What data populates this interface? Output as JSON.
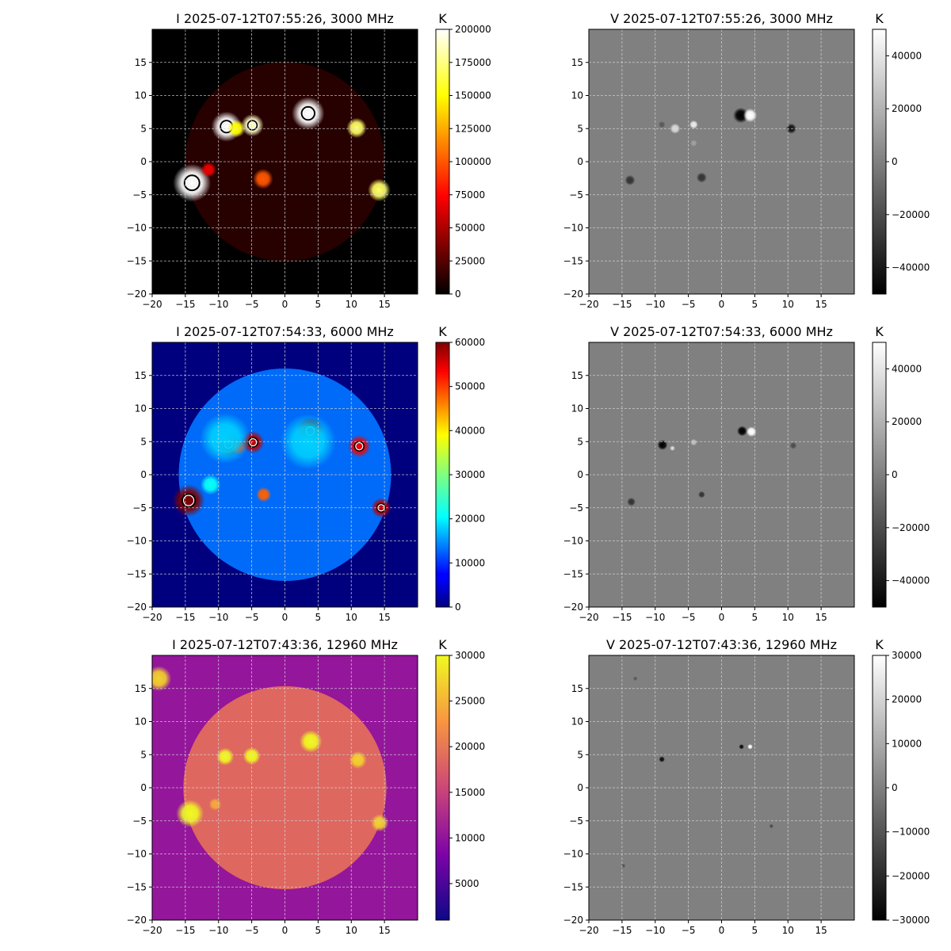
{
  "chart_data": [
    {
      "type": "heatmap",
      "title": "I 2025-07-12T07:55:26, 3000 MHz",
      "xlim": [
        -20,
        20
      ],
      "ylim": [
        -20,
        20
      ],
      "xticks": [
        -20,
        -15,
        -10,
        -5,
        0,
        5,
        10,
        15
      ],
      "yticks": [
        -20,
        -15,
        -10,
        -5,
        0,
        5,
        10,
        15
      ],
      "grid": true,
      "colormap": "hot",
      "colorbar": {
        "label": "K",
        "range": [
          0,
          200000
        ],
        "ticks": [
          0,
          25000,
          50000,
          75000,
          100000,
          125000,
          150000,
          175000,
          200000
        ]
      },
      "disk": {
        "center": [
          0,
          0
        ],
        "radius": 15,
        "brightness": 0.06
      },
      "contours": true,
      "sources": [
        {
          "x": -14.0,
          "y": -3.2,
          "r": 1.5,
          "level": 1.0,
          "polarity": 0
        },
        {
          "x": -8.8,
          "y": 5.3,
          "r": 1.2,
          "level": 1.0,
          "polarity": 0
        },
        {
          "x": -7.3,
          "y": 5.0,
          "r": 0.7,
          "level": 0.75,
          "polarity": 0
        },
        {
          "x": -4.9,
          "y": 5.5,
          "r": 0.9,
          "level": 0.95,
          "polarity": 0
        },
        {
          "x": 3.5,
          "y": 7.3,
          "r": 1.3,
          "level": 1.0,
          "polarity": 0
        },
        {
          "x": 10.8,
          "y": 5.1,
          "r": 0.8,
          "level": 0.85,
          "polarity": 0
        },
        {
          "x": 14.2,
          "y": -4.3,
          "r": 0.9,
          "level": 0.85,
          "polarity": 0
        },
        {
          "x": -3.3,
          "y": -2.6,
          "r": 0.8,
          "level": 0.5,
          "polarity": 0
        },
        {
          "x": -11.5,
          "y": -1.2,
          "r": 0.6,
          "level": 0.35,
          "polarity": 0
        }
      ]
    },
    {
      "type": "heatmap",
      "title": "V 2025-07-12T07:55:26, 3000 MHz",
      "xlim": [
        -20,
        20
      ],
      "ylim": [
        -20,
        20
      ],
      "xticks": [
        -20,
        -15,
        -10,
        -5,
        0,
        5,
        10,
        15
      ],
      "yticks": [
        -20,
        -15,
        -10,
        -5,
        0,
        5,
        10,
        15
      ],
      "grid": true,
      "colormap": "gray",
      "colorbar": {
        "label": "K",
        "range": [
          -50000,
          50000
        ],
        "ticks": [
          -40000,
          -20000,
          0,
          20000,
          40000
        ]
      },
      "sources": [
        {
          "x": 2.9,
          "y": 7.0,
          "r": 0.9,
          "level": 1.0,
          "polarity": -1
        },
        {
          "x": 4.3,
          "y": 7.0,
          "r": 0.8,
          "level": 1.0,
          "polarity": 1
        },
        {
          "x": -7.0,
          "y": 5.0,
          "r": 0.6,
          "level": 0.7,
          "polarity": 1
        },
        {
          "x": -4.2,
          "y": 5.6,
          "r": 0.5,
          "level": 0.85,
          "polarity": 1
        },
        {
          "x": -9.0,
          "y": 5.6,
          "r": 0.4,
          "level": 0.3,
          "polarity": -1
        },
        {
          "x": 10.5,
          "y": 5.0,
          "r": 0.6,
          "level": 0.85,
          "polarity": -1
        },
        {
          "x": -13.8,
          "y": -2.8,
          "r": 0.6,
          "level": 0.6,
          "polarity": -1
        },
        {
          "x": -3.0,
          "y": -2.4,
          "r": 0.6,
          "level": 0.6,
          "polarity": -1
        },
        {
          "x": -4.2,
          "y": 2.8,
          "r": 0.4,
          "level": 0.25,
          "polarity": 1
        }
      ]
    },
    {
      "type": "heatmap",
      "title": "I 2025-07-12T07:54:33, 6000 MHz",
      "xlim": [
        -20,
        20
      ],
      "ylim": [
        -20,
        20
      ],
      "xticks": [
        -20,
        -15,
        -10,
        -5,
        0,
        5,
        10,
        15
      ],
      "yticks": [
        -20,
        -15,
        -10,
        -5,
        0,
        5,
        10,
        15
      ],
      "grid": true,
      "colormap": "jet",
      "colorbar": {
        "label": "K",
        "range": [
          0,
          60000
        ],
        "ticks": [
          0,
          10000,
          20000,
          30000,
          40000,
          50000,
          60000
        ]
      },
      "disk": {
        "center": [
          0,
          0
        ],
        "radius": 16,
        "brightness": 0.22
      },
      "contours": true,
      "sources": [
        {
          "x": -14.5,
          "y": -3.9,
          "r": 1.3,
          "level": 1.0,
          "polarity": 0
        },
        {
          "x": -8.5,
          "y": 4.6,
          "r": 1.0,
          "level": 1.0,
          "polarity": 0
        },
        {
          "x": -7.0,
          "y": 4.2,
          "r": 0.6,
          "level": 0.85,
          "polarity": 0
        },
        {
          "x": -4.8,
          "y": 4.9,
          "r": 0.9,
          "level": 0.95,
          "polarity": 0
        },
        {
          "x": 3.8,
          "y": 6.6,
          "r": 1.1,
          "level": 1.0,
          "polarity": 0
        },
        {
          "x": 11.2,
          "y": 4.3,
          "r": 0.9,
          "level": 0.9,
          "polarity": 0
        },
        {
          "x": 14.5,
          "y": -5.0,
          "r": 0.8,
          "level": 0.95,
          "polarity": 0
        },
        {
          "x": -3.2,
          "y": -3.0,
          "r": 0.6,
          "level": 0.8,
          "polarity": 0
        },
        {
          "x": -11.2,
          "y": -1.5,
          "r": 0.8,
          "level": 0.35,
          "polarity": 0
        },
        {
          "x": -9.0,
          "y": 5.5,
          "r": 2.0,
          "level": 0.3,
          "polarity": 0
        },
        {
          "x": 3.5,
          "y": 5.0,
          "r": 2.2,
          "level": 0.3,
          "polarity": 0
        }
      ]
    },
    {
      "type": "heatmap",
      "title": "V 2025-07-12T07:54:33, 6000 MHz",
      "xlim": [
        -20,
        20
      ],
      "ylim": [
        -20,
        20
      ],
      "xticks": [
        -20,
        -15,
        -10,
        -5,
        0,
        5,
        10,
        15
      ],
      "yticks": [
        -20,
        -15,
        -10,
        -5,
        0,
        5,
        10,
        15
      ],
      "grid": true,
      "colormap": "gray",
      "colorbar": {
        "label": "K",
        "range": [
          -50000,
          50000
        ],
        "ticks": [
          -40000,
          -20000,
          0,
          20000,
          40000
        ]
      },
      "sources": [
        {
          "x": 3.1,
          "y": 6.6,
          "r": 0.6,
          "level": 1.0,
          "polarity": -1
        },
        {
          "x": 4.5,
          "y": 6.5,
          "r": 0.6,
          "level": 1.0,
          "polarity": 1
        },
        {
          "x": -8.9,
          "y": 4.5,
          "r": 0.6,
          "level": 1.0,
          "polarity": -1
        },
        {
          "x": -7.4,
          "y": 4.0,
          "r": 0.3,
          "level": 0.7,
          "polarity": 1
        },
        {
          "x": -4.2,
          "y": 4.9,
          "r": 0.4,
          "level": 0.5,
          "polarity": 1
        },
        {
          "x": 10.8,
          "y": 4.4,
          "r": 0.4,
          "level": 0.4,
          "polarity": -1
        },
        {
          "x": -13.6,
          "y": -4.1,
          "r": 0.5,
          "level": 0.6,
          "polarity": -1
        },
        {
          "x": -3.0,
          "y": -3.0,
          "r": 0.4,
          "level": 0.6,
          "polarity": -1
        }
      ]
    },
    {
      "type": "heatmap",
      "title": "I 2025-07-12T07:43:36, 12960 MHz",
      "xlim": [
        -20,
        20
      ],
      "ylim": [
        -20,
        20
      ],
      "xticks": [
        -20,
        -15,
        -10,
        -5,
        0,
        5,
        10,
        15
      ],
      "yticks": [
        -20,
        -15,
        -10,
        -5,
        0,
        5,
        10,
        15
      ],
      "grid": true,
      "colormap": "plasma",
      "colorbar": {
        "label": "K",
        "range": [
          1000,
          30000
        ],
        "ticks": [
          5000,
          10000,
          15000,
          20000,
          25000,
          30000
        ]
      },
      "background_level": 0.32,
      "disk": {
        "center": [
          0,
          0
        ],
        "radius": 15.3,
        "brightness": 0.62
      },
      "sources": [
        {
          "x": -14.3,
          "y": -3.9,
          "r": 1.1,
          "level": 1.0,
          "polarity": 0
        },
        {
          "x": -9.0,
          "y": 4.7,
          "r": 0.7,
          "level": 1.0,
          "polarity": 0
        },
        {
          "x": -5.0,
          "y": 4.8,
          "r": 0.7,
          "level": 1.0,
          "polarity": 0
        },
        {
          "x": 3.9,
          "y": 7.0,
          "r": 0.9,
          "level": 1.0,
          "polarity": 0
        },
        {
          "x": 11.0,
          "y": 4.2,
          "r": 0.7,
          "level": 0.9,
          "polarity": 0
        },
        {
          "x": 14.3,
          "y": -5.3,
          "r": 0.7,
          "level": 0.9,
          "polarity": 0
        },
        {
          "x": -19.0,
          "y": 16.5,
          "r": 1.0,
          "level": 0.9,
          "polarity": 0
        },
        {
          "x": -10.5,
          "y": -2.5,
          "r": 0.5,
          "level": 0.8,
          "polarity": 0
        }
      ]
    },
    {
      "type": "heatmap",
      "title": "V 2025-07-12T07:43:36, 12960 MHz",
      "xlim": [
        -20,
        20
      ],
      "ylim": [
        -20,
        20
      ],
      "xticks": [
        -20,
        -15,
        -10,
        -5,
        0,
        5,
        10,
        15
      ],
      "yticks": [
        -20,
        -15,
        -10,
        -5,
        0,
        5,
        10,
        15
      ],
      "grid": true,
      "colormap": "gray",
      "colorbar": {
        "label": "K",
        "range": [
          -30000,
          30000
        ],
        "ticks": [
          -30000,
          -20000,
          -10000,
          0,
          10000,
          20000,
          30000
        ]
      },
      "sources": [
        {
          "x": 3.0,
          "y": 6.2,
          "r": 0.3,
          "level": 0.9,
          "polarity": -1
        },
        {
          "x": 4.3,
          "y": 6.2,
          "r": 0.3,
          "level": 1.0,
          "polarity": 1
        },
        {
          "x": -9.0,
          "y": 4.3,
          "r": 0.35,
          "level": 0.9,
          "polarity": -1
        },
        {
          "x": 7.5,
          "y": -5.8,
          "r": 0.25,
          "level": 0.4,
          "polarity": -1
        },
        {
          "x": -14.8,
          "y": -11.8,
          "r": 0.25,
          "level": 0.35,
          "polarity": -1
        },
        {
          "x": -13.0,
          "y": 16.5,
          "r": 0.25,
          "level": 0.3,
          "polarity": -1
        }
      ]
    }
  ]
}
